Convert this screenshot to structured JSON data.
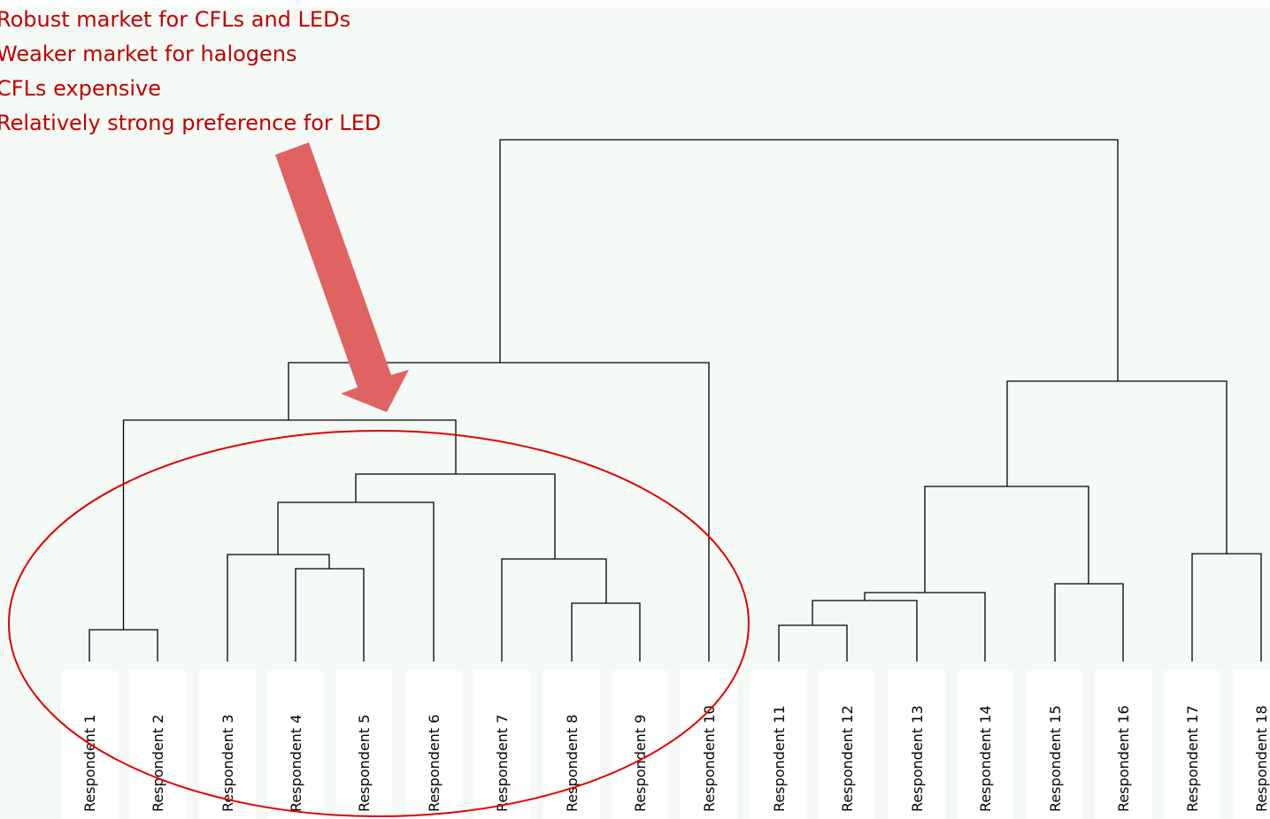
{
  "annotations": [
    "Robust market for CFLs and LEDs",
    "Weaker market for halogens",
    "CFLs expensive",
    "Relatively strong preference for LED"
  ],
  "leaves": [
    "Respondent 1",
    "Respondent 2",
    "Respondent 3",
    "Respondent 4",
    "Respondent 5",
    "Respondent 6",
    "Respondent 7",
    "Respondent 8",
    "Respondent 9",
    "Respondent 10",
    "Respondent 11",
    "Respondent 12",
    "Respondent 13",
    "Respondent 14",
    "Respondent 15",
    "Respondent 16",
    "Respondent 17",
    "Respondent 18"
  ]
}
